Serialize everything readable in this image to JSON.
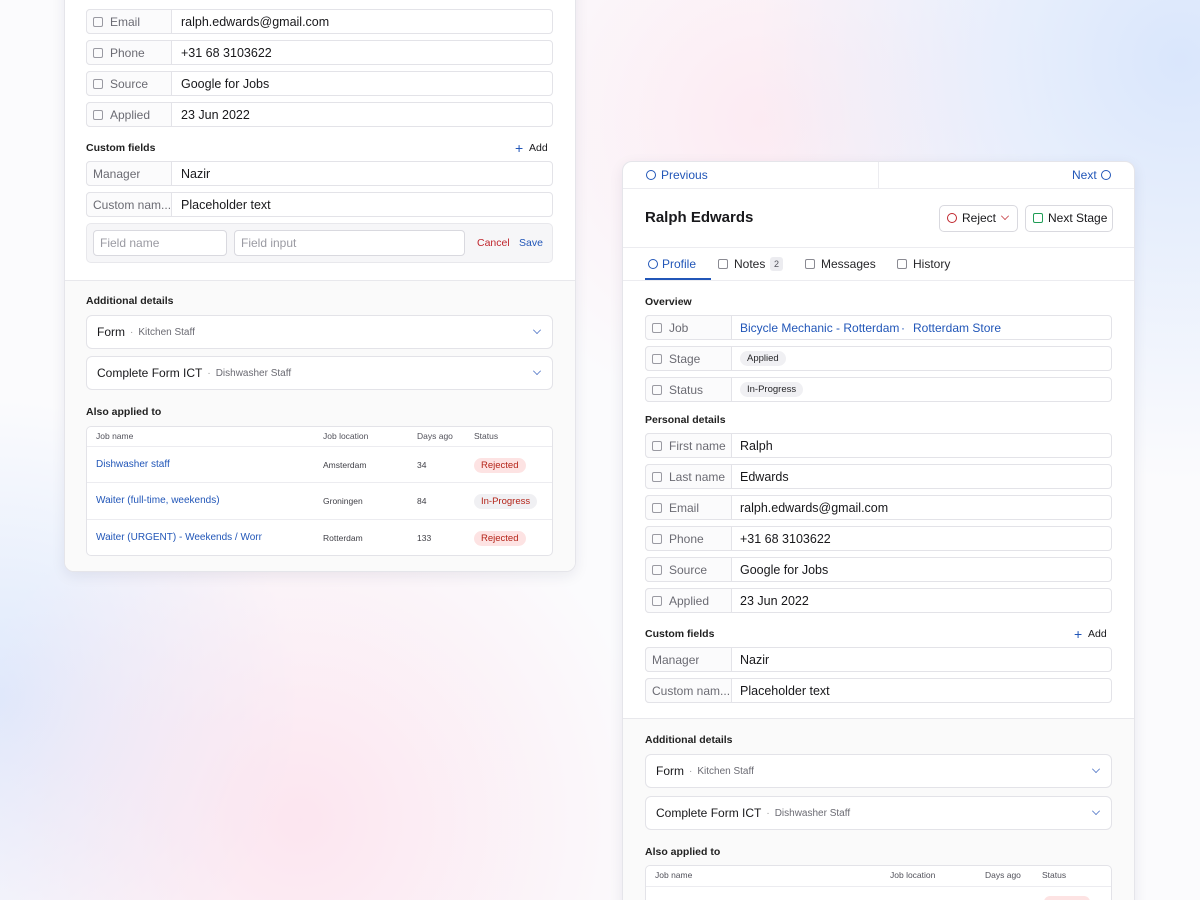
{
  "left_panel": {
    "personal_fields": [
      {
        "label": "Email",
        "value": "ralph.edwards@gmail.com"
      },
      {
        "label": "Phone",
        "value": "+31 68 3103622"
      },
      {
        "label": "Source",
        "value": "Google for Jobs"
      },
      {
        "label": "Applied",
        "value": "23 Jun 2022"
      }
    ],
    "custom_fields": {
      "title": "Custom fields",
      "add": "Add",
      "fields": [
        {
          "label": "Manager",
          "value": "Nazir"
        },
        {
          "label": "Custom nam...",
          "value": "Placeholder text"
        }
      ],
      "new_field": {
        "name_placeholder": "Field name",
        "input_placeholder": "Field input",
        "cancel": "Cancel",
        "save": "Save"
      }
    },
    "additional_details": {
      "title": "Additional details",
      "forms": [
        {
          "name": "Form",
          "subtitle": "Kitchen Staff"
        },
        {
          "name": "Complete Form ICT",
          "subtitle": "Dishwasher Staff"
        }
      ]
    },
    "also_applied": {
      "title": "Also applied to",
      "columns": [
        "Job name",
        "Job location",
        "Days ago",
        "Status"
      ],
      "rows": [
        {
          "job": "Dishwasher staff",
          "location": "Amsterdam",
          "days_ago": 34,
          "status": "Rejected",
          "status_color": "#fde3e3"
        },
        {
          "job": "Waiter (full-time, weekends)",
          "location": "Groningen",
          "days_ago": 84,
          "status": "In-Progress",
          "status_color": "#f0f0f3"
        },
        {
          "job": "Waiter (URGENT) - Weekends / Worn",
          "location": "Rotterdam",
          "days_ago": 133,
          "status": "Rejected",
          "status_color": "#fde3e3"
        }
      ]
    }
  },
  "right_panel": {
    "nav": {
      "previous": "Previous",
      "next": "Next"
    },
    "candidate_name": "Ralph Edwards",
    "actions": {
      "reject": "Reject",
      "next_stage": "Next Stage"
    },
    "tabs": [
      {
        "label": "Profile"
      },
      {
        "label": "Notes",
        "count": 2
      },
      {
        "label": "Messages"
      },
      {
        "label": "History"
      }
    ],
    "overview": {
      "title": "Overview",
      "job": {
        "label": "Job",
        "title": "Bicycle Mechanic - Rotterdam",
        "location": "Rotterdam Store"
      },
      "stage": {
        "label": "Stage",
        "value": "Applied"
      },
      "status": {
        "label": "Status",
        "value": "In-Progress"
      }
    },
    "personal_details": {
      "title": "Personal details",
      "fields": [
        {
          "label": "First name",
          "value": "Ralph"
        },
        {
          "label": "Last name",
          "value": "Edwards"
        },
        {
          "label": "Email",
          "value": "ralph.edwards@gmail.com"
        },
        {
          "label": "Phone",
          "value": "+31 68 3103622"
        },
        {
          "label": "Source",
          "value": "Google for Jobs"
        },
        {
          "label": "Applied",
          "value": "23 Jun 2022"
        }
      ]
    },
    "custom_fields": {
      "title": "Custom fields",
      "add": "Add",
      "fields": [
        {
          "label": "Manager",
          "value": "Nazir"
        },
        {
          "label": "Custom nam...",
          "value": "Placeholder text"
        }
      ]
    },
    "additional_details": {
      "title": "Additional details",
      "forms": [
        {
          "name": "Form",
          "subtitle": "Kitchen Staff"
        },
        {
          "name": "Complete Form ICT",
          "subtitle": "Dishwasher Staff"
        }
      ]
    },
    "also_applied": {
      "title": "Also applied to",
      "columns": [
        "Job name",
        "Job location",
        "Days ago",
        "Status"
      ]
    }
  }
}
